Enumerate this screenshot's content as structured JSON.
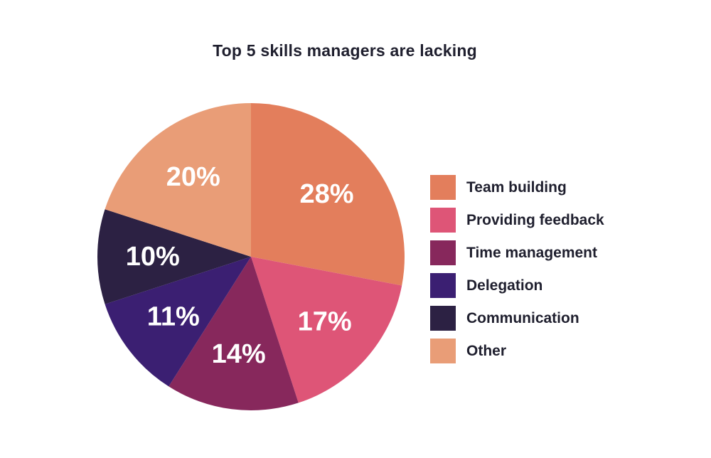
{
  "chart_data": {
    "type": "pie",
    "title": "Top 5 skills managers are lacking",
    "slices": [
      {
        "label": "Team building",
        "value": 28,
        "value_label": "28%",
        "color": "#e37e5c"
      },
      {
        "label": "Providing feedback",
        "value": 17,
        "value_label": "17%",
        "color": "#de5577"
      },
      {
        "label": "Time management",
        "value": 14,
        "value_label": "14%",
        "color": "#87285c"
      },
      {
        "label": "Delegation",
        "value": 11,
        "value_label": "11%",
        "color": "#3b1f72"
      },
      {
        "label": "Communication",
        "value": 10,
        "value_label": "10%",
        "color": "#2c2143"
      },
      {
        "label": "Other",
        "value": 20,
        "value_label": "20%",
        "color": "#e99d77"
      }
    ],
    "legend_position": "right",
    "start_angle": "top",
    "direction": "clockwise"
  }
}
